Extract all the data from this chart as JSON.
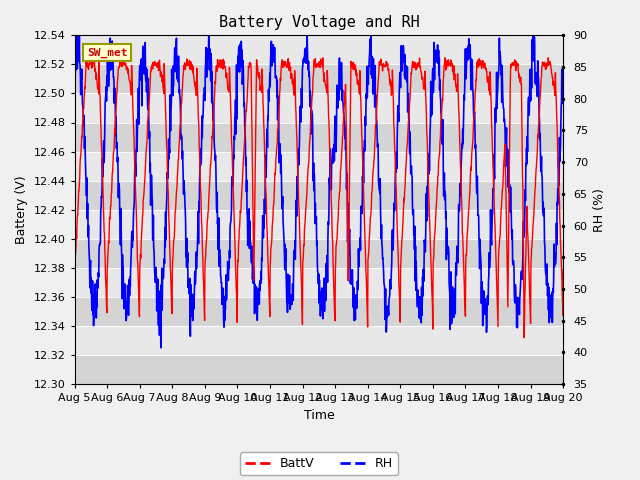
{
  "title": "Battery Voltage and RH",
  "xlabel": "Time",
  "ylabel_left": "Battery (V)",
  "ylabel_right": "RH (%)",
  "ylim_left": [
    12.3,
    12.54
  ],
  "ylim_right": [
    35,
    90
  ],
  "yticks_left": [
    12.3,
    12.32,
    12.34,
    12.36,
    12.38,
    12.4,
    12.42,
    12.44,
    12.46,
    12.48,
    12.5,
    12.52,
    12.54
  ],
  "yticks_right": [
    35,
    40,
    45,
    50,
    55,
    60,
    65,
    70,
    75,
    80,
    85,
    90
  ],
  "x_tick_labels": [
    "Aug 5",
    "Aug 6",
    "Aug 7",
    "Aug 8",
    "Aug 9",
    "Aug 10",
    "Aug 11",
    "Aug 12",
    "Aug 13",
    "Aug 14",
    "Aug 15",
    "Aug 16",
    "Aug 17",
    "Aug 18",
    "Aug 19",
    "Aug 20"
  ],
  "x_tick_positions": [
    0,
    1,
    2,
    3,
    4,
    5,
    6,
    7,
    8,
    9,
    10,
    11,
    12,
    13,
    14,
    15
  ],
  "station_label": "SW_met",
  "legend_labels": [
    "BattV",
    "RH"
  ],
  "line_colors": [
    "red",
    "blue"
  ],
  "bg_light": "#e8e8e8",
  "bg_dark": "#d4d4d4",
  "fig_bg": "#f0f0f0",
  "title_fontsize": 11,
  "axis_label_fontsize": 9,
  "tick_fontsize": 8,
  "legend_fontsize": 9
}
